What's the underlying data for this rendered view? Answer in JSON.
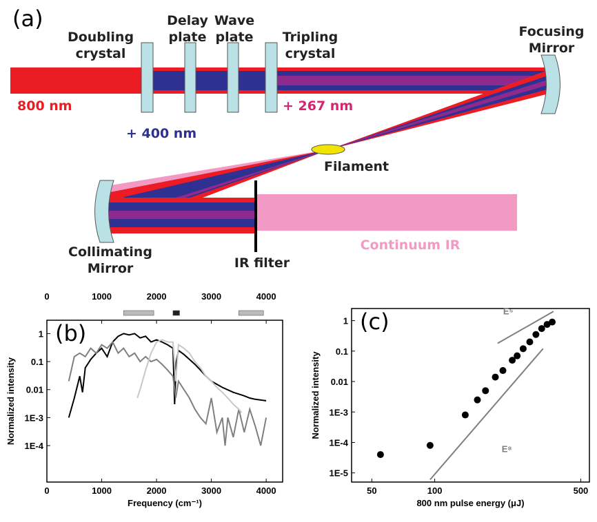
{
  "diagram": {
    "panel_label": "(a)",
    "doubling_crystal": [
      "Doubling",
      "crystal"
    ],
    "delay_plate": [
      "Delay",
      "plate"
    ],
    "wave_plate": [
      "Wave",
      "plate"
    ],
    "tripling_crystal": [
      "Tripling",
      "crystal"
    ],
    "focusing_mirror": [
      "Focusing",
      "Mirror"
    ],
    "wavelength_800": "800 nm",
    "wavelength_400": "+ 400 nm",
    "wavelength_267": "+ 267 nm",
    "filament": "Filament",
    "collimating_mirror": [
      "Collimating",
      "Mirror"
    ],
    "ir_filter": "IR filter",
    "continuum_ir": "Continuum IR"
  },
  "chart_data": [
    {
      "type": "line",
      "panel_label": "(b)",
      "y_label": "Normalized intensity",
      "x_label": "Frequency (cm⁻¹)",
      "xlim": [
        0,
        4300
      ],
      "xticks": [
        0,
        1000,
        2000,
        3000,
        4000
      ],
      "top_axis": true,
      "ylim": [
        5e-06,
        3
      ],
      "y_log": true,
      "yticks": [
        1,
        0.1,
        0.01,
        {
          "value": 0.001,
          "label": "1E-3"
        },
        {
          "value": 0.0001,
          "label": "1E-4"
        }
      ],
      "top_bands": [
        {
          "start": 1400,
          "end": 1950,
          "color": "#bbbbbb"
        },
        {
          "start": 2300,
          "end": 2420,
          "color": "#222222"
        },
        {
          "start": 3500,
          "end": 3950,
          "color": "#bbbbbb"
        }
      ],
      "series": [
        {
          "color": "#000000",
          "x": [
            400,
            500,
            600,
            650,
            700,
            800,
            900,
            1000,
            1100,
            1200,
            1300,
            1400,
            1500,
            1600,
            1700,
            1800,
            1900,
            2000,
            2100,
            2200,
            2300,
            2330,
            2360,
            2400,
            2500,
            2600,
            2700,
            2800,
            2900,
            3000,
            3200,
            3400,
            3600,
            3700,
            3800,
            4000
          ],
          "values": [
            0.001,
            0.005,
            0.03,
            0.008,
            0.06,
            0.12,
            0.2,
            0.3,
            0.15,
            0.5,
            0.8,
            1,
            0.9,
            1,
            0.7,
            0.8,
            0.5,
            0.6,
            0.5,
            0.4,
            0.3,
            0.003,
            0.1,
            0.25,
            0.18,
            0.12,
            0.08,
            0.05,
            0.03,
            0.02,
            0.012,
            0.008,
            0.006,
            0.005,
            0.0045,
            0.004
          ]
        },
        {
          "color": "#7f7f7f",
          "x": [
            400,
            500,
            600,
            700,
            800,
            900,
            1000,
            1100,
            1200,
            1300,
            1400,
            1500,
            1600,
            1700,
            1800,
            1900,
            2000,
            2100,
            2200,
            2300,
            2350,
            2400,
            2500,
            2600,
            2700,
            2800,
            2900,
            3000,
            3100,
            3200,
            3250,
            3300,
            3400,
            3500,
            3600,
            3700,
            3800,
            3900,
            4000
          ],
          "values": [
            0.02,
            0.15,
            0.2,
            0.15,
            0.3,
            0.2,
            0.4,
            0.3,
            0.5,
            0.2,
            0.3,
            0.15,
            0.2,
            0.1,
            0.15,
            0.1,
            0.12,
            0.08,
            0.05,
            0.03,
            0.005,
            0.02,
            0.01,
            0.005,
            0.002,
            0.001,
            0.0006,
            0.005,
            0.0003,
            0.001,
            0.0001,
            0.001,
            0.0002,
            0.002,
            0.0003,
            0.002,
            0.0005,
            0.0001,
            0.001
          ]
        },
        {
          "color": "#c8c8c8",
          "x": [
            1650,
            1700,
            1800,
            1900,
            2000,
            2100,
            2200,
            2300,
            2350,
            2400,
            2500,
            2600,
            2700,
            2800,
            2900,
            3000,
            3100,
            3200,
            3300,
            3400,
            3500,
            3550
          ],
          "values": [
            0.005,
            0.01,
            0.05,
            0.2,
            0.5,
            0.6,
            0.5,
            0.5,
            0.02,
            0.4,
            0.3,
            0.2,
            0.1,
            0.06,
            0.03,
            0.02,
            0.012,
            0.008,
            0.005,
            0.003,
            0.002,
            0.0015
          ]
        }
      ]
    },
    {
      "type": "scatter",
      "panel_label": "(c)",
      "y_label": "Normalized intensity",
      "x_label": "800 nm pulse energy (μJ)",
      "xlim": [
        40,
        550
      ],
      "x_log": true,
      "xticks": [
        50,
        100,
        500
      ],
      "ylim": [
        5e-06,
        2.5
      ],
      "y_log": true,
      "yticks": [
        1,
        0.1,
        0.01,
        {
          "value": 0.001,
          "label": "1E-3"
        },
        {
          "value": 0.0001,
          "label": "1E-4"
        },
        {
          "value": 1e-05,
          "label": "1E-5"
        }
      ],
      "color": "#000000",
      "x": [
        55,
        95,
        140,
        160,
        175,
        195,
        212,
        235,
        248,
        265,
        285,
        305,
        325,
        345,
        365
      ],
      "values": [
        4e-05,
        8e-05,
        0.0008,
        0.0025,
        0.005,
        0.014,
        0.023,
        0.05,
        0.07,
        0.12,
        0.2,
        0.35,
        0.55,
        0.75,
        0.9
      ],
      "guide_lines": [
        {
          "label": "E⁵",
          "x": [
            200,
            370
          ],
          "y": [
            0.18,
            2
          ]
        },
        {
          "label": "E⁸",
          "x": [
            95,
            330
          ],
          "y": [
            6e-06,
            0.12
          ]
        }
      ]
    }
  ]
}
